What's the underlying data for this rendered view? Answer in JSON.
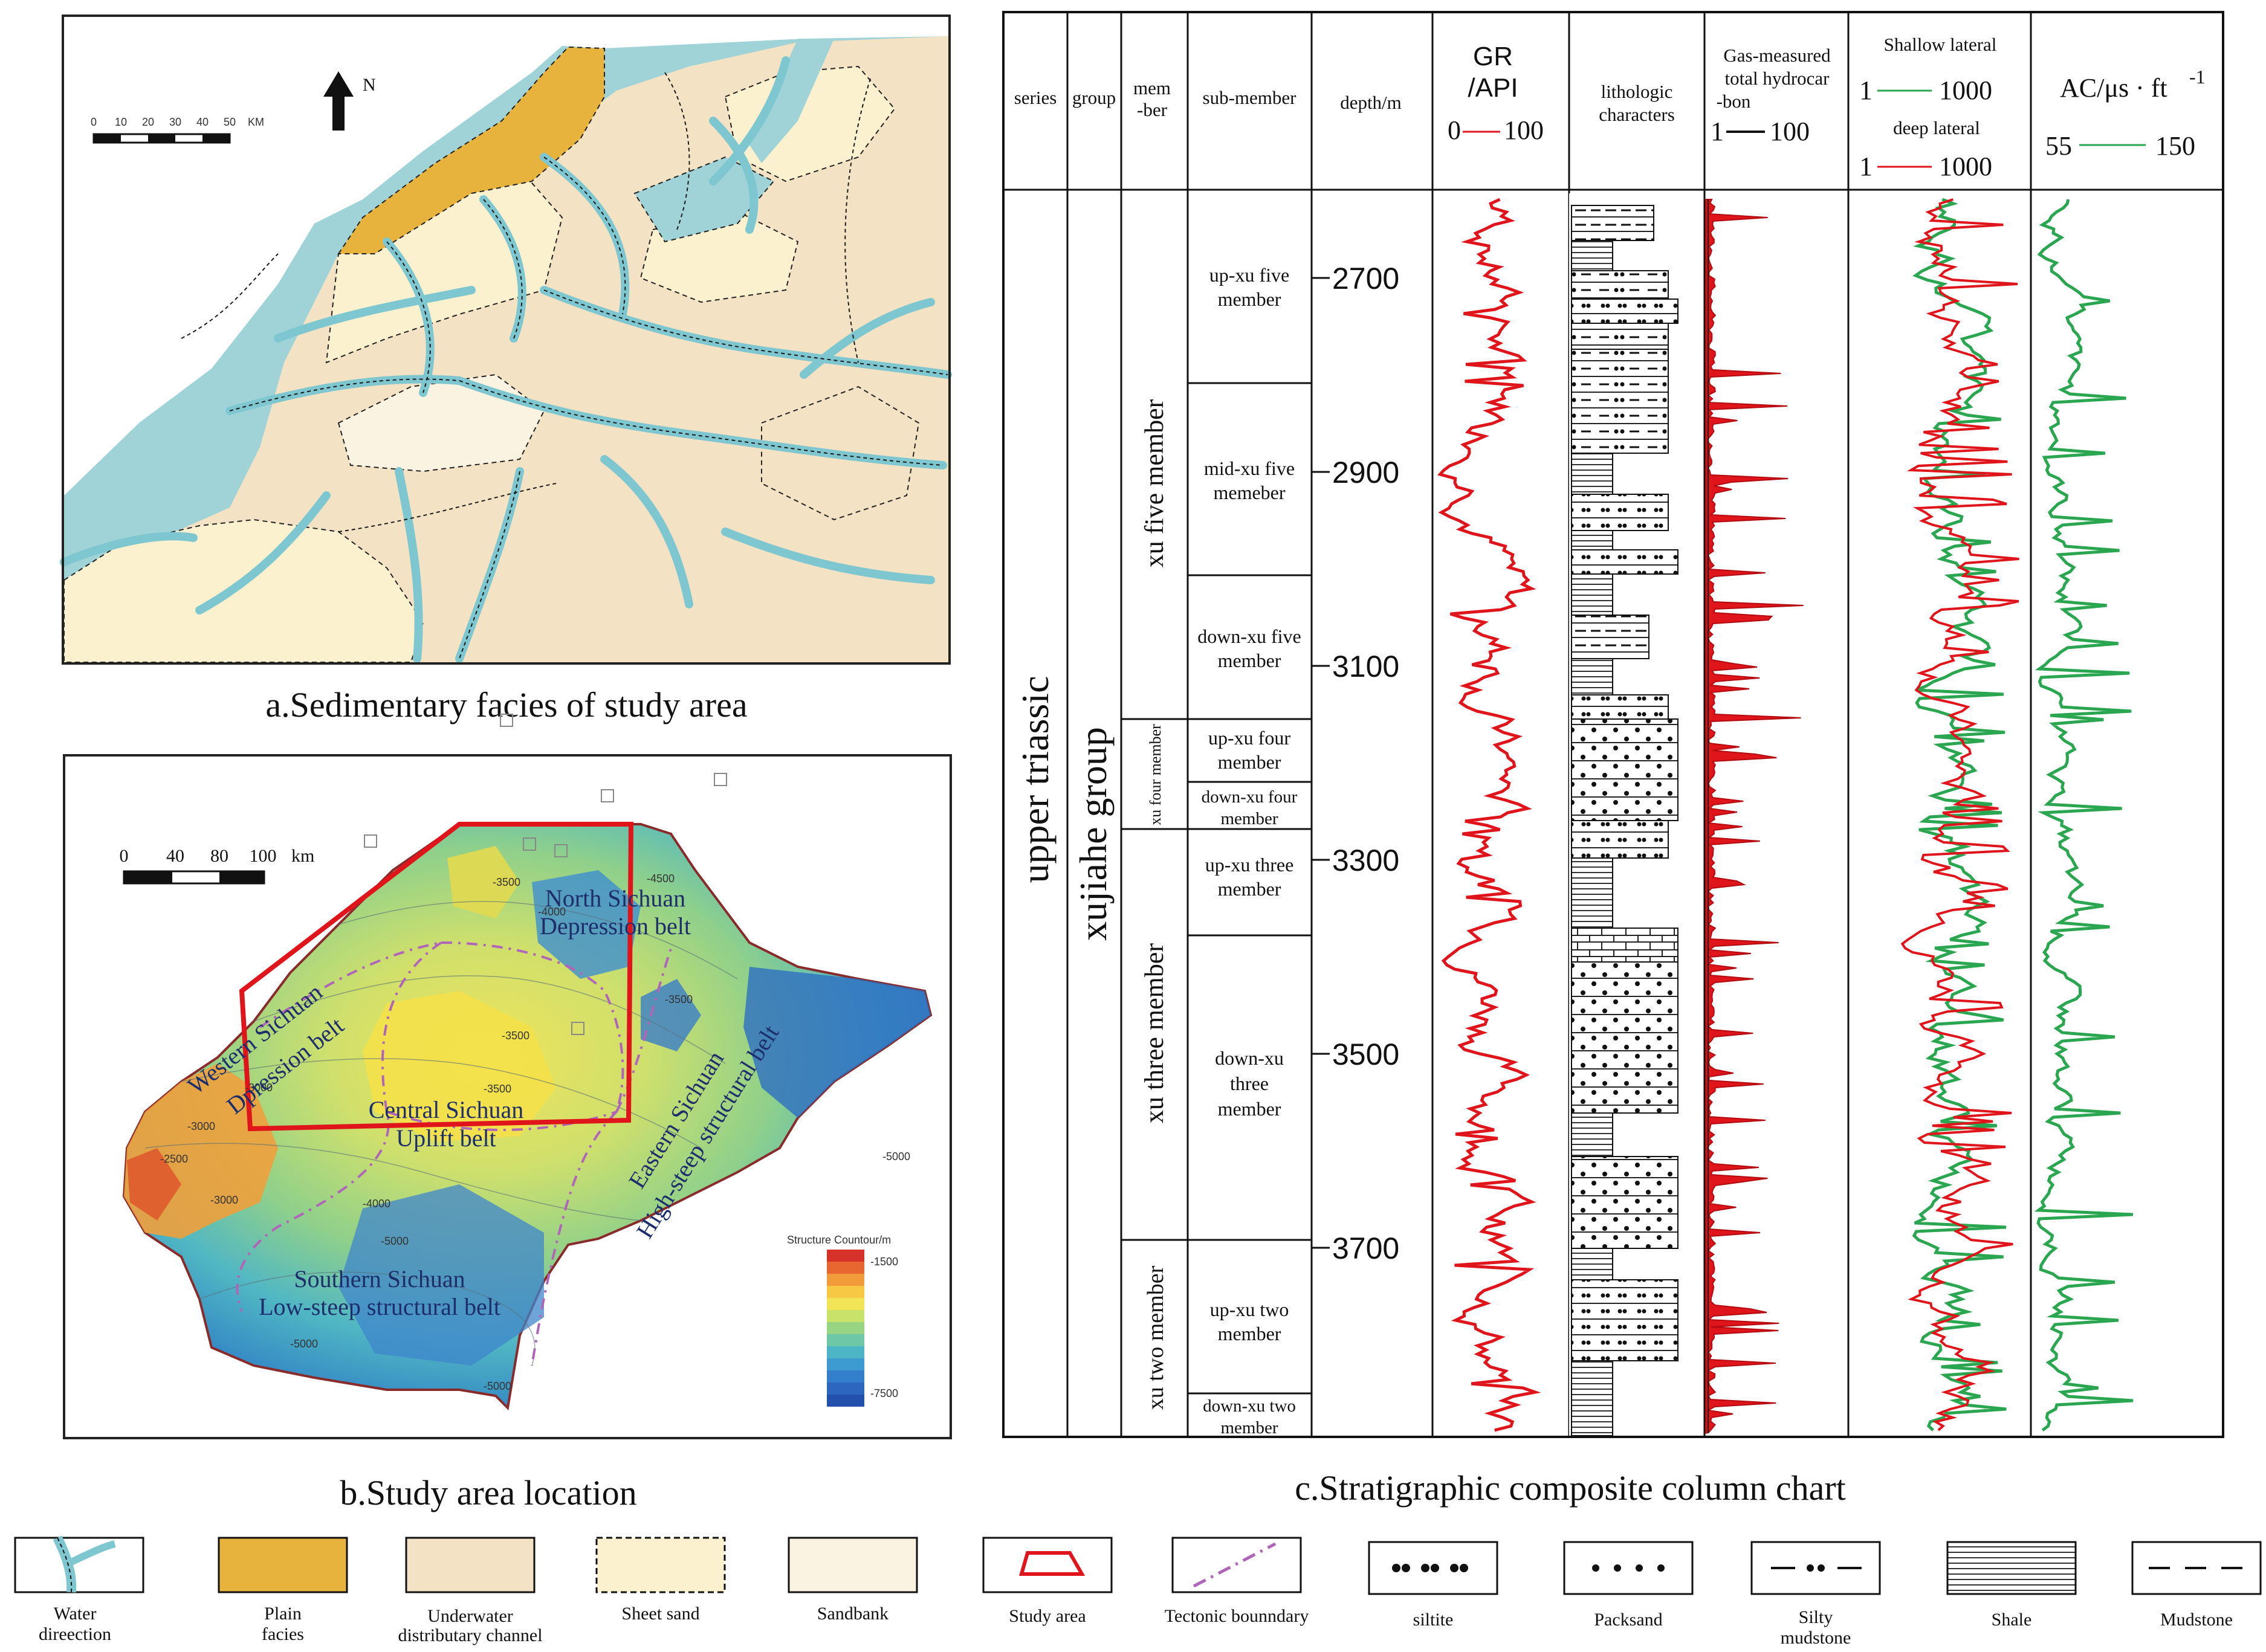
{
  "panel_a": {
    "caption": "a.Sedimentary facies of study area",
    "north_label": "N",
    "scale_ticks": [
      "0",
      "10",
      "20",
      "30",
      "40",
      "50"
    ],
    "scale_unit": "KM",
    "colors": {
      "lake": "#9fd3d8",
      "plain": "#e8b33c",
      "underwater": "#f4e2c4",
      "sheet": "#fbf1cf",
      "sandbank": "#fbf3e2"
    }
  },
  "panel_b": {
    "caption": "b.Study area location",
    "scale_ticks": [
      "0",
      "40",
      "80",
      "100"
    ],
    "scale_unit": "km",
    "regions": [
      "North Sichuan",
      "Depression belt",
      "Western Sichuan",
      "Dpression belt",
      "Central Sichuan",
      "Uplift belt",
      "Eastern Sichuan",
      "High-steep structural belt",
      "Southern Sichuan",
      "Low-steep structural belt"
    ],
    "contour_title": "Structure Countour/m",
    "contour_min": "-1500",
    "contour_max": "-7500",
    "contour_labels": [
      "-3500",
      "-4000",
      "-3000",
      "-3500",
      "-3500",
      "-3000",
      "-2500",
      "-3000",
      "-4000",
      "-5000",
      "-5000",
      "-5000",
      "-4500",
      "-3500",
      "-5000"
    ]
  },
  "panel_c": {
    "caption": "c.Stratigraphic composite column chart",
    "headers": {
      "series": "series",
      "group": "group",
      "member1": "mem",
      "member2": "-ber",
      "submember": "sub-member",
      "depth": "depth/m",
      "gr1": "GR",
      "gr2": "/API",
      "gr_min": "0",
      "gr_max": "100",
      "litho1": "lithologic",
      "litho2": "characters",
      "gas1": "Gas-measured",
      "gas2": "total hydrocar",
      "gas3": "-bon",
      "gas_min": "1",
      "gas_max": "100",
      "shallow": "Shallow lateral",
      "shallow_min": "1",
      "shallow_max": "1000",
      "deep": "deep lateral",
      "deep_min": "1",
      "deep_max": "1000",
      "ac": "AC/μs · ft",
      "ac_exp": "-1",
      "ac_min": "55",
      "ac_max": "150"
    },
    "series_name": "upper triassic",
    "group_name": "xujiahe group",
    "members": [
      "xu five member",
      "xu four member",
      "xu three member",
      "xu two member"
    ],
    "submembers": [
      [
        "up-xu five",
        "member"
      ],
      [
        "mid-xu five",
        "memeber"
      ],
      [
        "down-xu five",
        "member"
      ],
      [
        "up-xu four",
        "member"
      ],
      [
        "down-xu four",
        "member"
      ],
      [
        "up-xu three",
        "member"
      ],
      [
        "down-xu",
        "three",
        "member"
      ],
      [
        "up-xu two",
        "member"
      ],
      [
        "down-xu two",
        "member"
      ]
    ],
    "depths": [
      "2700",
      "2900",
      "3100",
      "3300",
      "3500",
      "3700"
    ],
    "colors": {
      "gr": "#e0141b",
      "gas": "#e0141b",
      "shallow": "#2aa650",
      "deep": "#e0141b",
      "ac": "#2aa650"
    }
  },
  "legend": [
    {
      "name": "water-direction",
      "label": [
        "Water",
        "direection"
      ]
    },
    {
      "name": "plain-facies",
      "label": [
        "Plain",
        "facies"
      ]
    },
    {
      "name": "underwater-channel",
      "label": [
        "Underwater",
        "distributary channel"
      ]
    },
    {
      "name": "sheet-sand",
      "label": [
        "Sheet sand"
      ]
    },
    {
      "name": "sandbank",
      "label": [
        "Sandbank"
      ]
    },
    {
      "name": "study-area",
      "label": [
        "Study  area"
      ]
    },
    {
      "name": "tectonic-boundary",
      "label": [
        "Tectonic bounndary"
      ]
    },
    {
      "name": "siltite",
      "label": [
        "siltite"
      ]
    },
    {
      "name": "packsand",
      "label": [
        "Packsand"
      ]
    },
    {
      "name": "silty-mudstone",
      "label": [
        "Silty",
        "mudstone"
      ]
    },
    {
      "name": "shale",
      "label": [
        "Shale"
      ]
    },
    {
      "name": "mudstone",
      "label": [
        "Mudstone"
      ]
    }
  ]
}
